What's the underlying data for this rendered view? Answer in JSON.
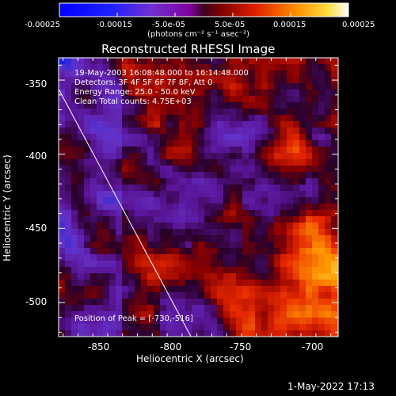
{
  "colorbar": {
    "ticks": [
      "-0.00025",
      "-0.00015",
      "-5.0e-05",
      "5.0e-05",
      "0.00015",
      "0.00025"
    ],
    "units": "(photons cm⁻² s⁻¹ asec⁻²)",
    "range": [
      -0.00025,
      0.00025
    ]
  },
  "image": {
    "title": "Reconstructed RHESSI Image",
    "xlabel": "Heliocentric X (arcsec)",
    "ylabel": "Heliocentric Y (arcsec)",
    "x_ticks": [
      "-850",
      "-800",
      "-750",
      "-700"
    ],
    "y_ticks": [
      "-350",
      "-400",
      "-450",
      "-500"
    ],
    "xlim": [
      -878,
      -690
    ],
    "ylim": [
      -523,
      -335
    ],
    "info_lines": [
      "19-May-2003 16:08:48.000 to 16:14:48.000",
      "Detectors: 3F 4F 5F 6F 7F 8F, Att 0",
      "Energy Range: 25.0 - 50.0 keV",
      "Clean    Total counts: 4.75E+03"
    ],
    "peak_label": "Position of Peak = [-730,-516]",
    "peak_position": [
      -730,
      -516
    ],
    "limb_line": [
      [
        -878,
        -356
      ],
      [
        -789,
        -523
      ]
    ]
  },
  "footer": {
    "timestamp": "1-May-2022 17:13"
  },
  "colors": {
    "background": "#000000",
    "text": "#ffffff"
  }
}
